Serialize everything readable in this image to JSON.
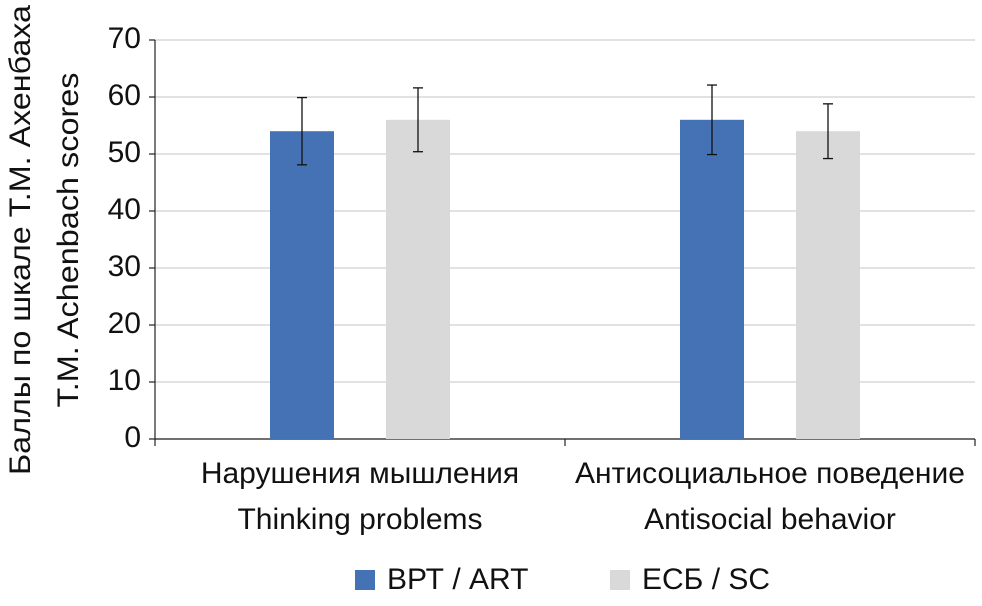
{
  "chart_data": {
    "type": "bar",
    "ylabel": [
      "Баллы по шкале Т.М. Ахенбаха",
      "T.M. Achenbach scores"
    ],
    "categories": [
      [
        "Нарушения мышления",
        "Thinking problems"
      ],
      [
        "Антисоциальное поведение",
        "Antisocial behavior"
      ]
    ],
    "series": [
      {
        "name": "ВРТ / ART",
        "color": "#4472b4",
        "values": [
          54,
          56
        ],
        "errors": [
          5.9,
          6.1
        ]
      },
      {
        "name": "ЕСБ / SC",
        "color": "#d9d9d9",
        "values": [
          56,
          54
        ],
        "errors": [
          5.6,
          4.8
        ]
      }
    ],
    "ylim": [
      0,
      70
    ],
    "yticks": [
      0,
      10,
      20,
      30,
      40,
      50,
      60,
      70
    ],
    "grid": true,
    "legend": "bottom"
  }
}
